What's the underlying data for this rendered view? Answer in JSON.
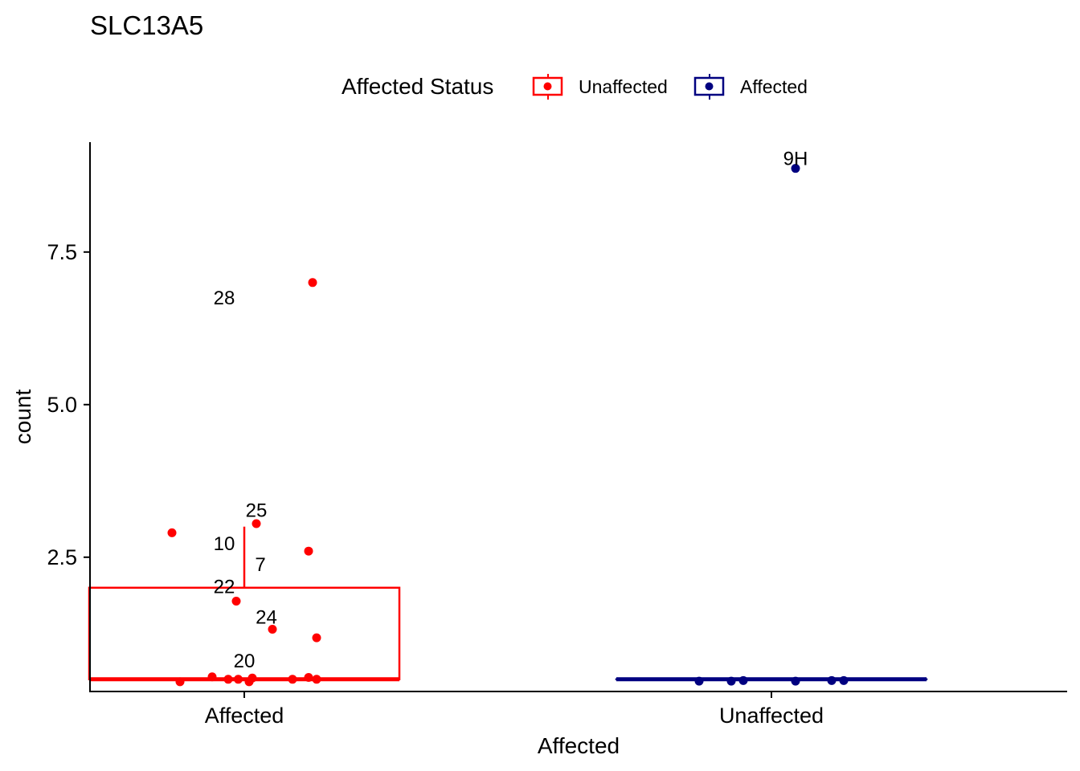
{
  "chart_data": {
    "type": "box",
    "title": "SLC13A5",
    "xlabel": "Affected",
    "ylabel": "count",
    "categories": [
      "Affected",
      "Unaffected"
    ],
    "ylim": [
      0.3,
      9.3
    ],
    "yticks": [
      2.5,
      5.0,
      7.5
    ],
    "ytick_labels": [
      "2.5",
      "5.0",
      "7.5"
    ],
    "legend": {
      "title": "Affected Status",
      "position": "top",
      "entries": [
        {
          "label": "Unaffected",
          "color": "#ff0000"
        },
        {
          "label": "Affected",
          "color": "#000080"
        }
      ]
    },
    "series": [
      {
        "name": "Unaffected",
        "category": "Affected",
        "color": "#ff0000",
        "box": {
          "q1": 0.5,
          "median": 0.5,
          "q3": 2.0,
          "whisker_low": 0.5,
          "whisker_high": 3.0
        },
        "points": [
          {
            "x": -0.18,
            "y": 2.9
          },
          {
            "x": 0.03,
            "y": 3.05
          },
          {
            "x": 0.16,
            "y": 2.6
          },
          {
            "x": 0.17,
            "y": 7.0
          },
          {
            "x": -0.02,
            "y": 1.78
          },
          {
            "x": 0.07,
            "y": 1.32
          },
          {
            "x": 0.18,
            "y": 1.18
          },
          {
            "x": -0.16,
            "y": 0.46
          },
          {
            "x": -0.08,
            "y": 0.54
          },
          {
            "x": -0.04,
            "y": 0.5
          },
          {
            "x": -0.015,
            "y": 0.5
          },
          {
            "x": 0.012,
            "y": 0.46
          },
          {
            "x": 0.02,
            "y": 0.52
          },
          {
            "x": 0.12,
            "y": 0.5
          },
          {
            "x": 0.16,
            "y": 0.53
          },
          {
            "x": 0.18,
            "y": 0.5
          }
        ],
        "labels": [
          {
            "text": "28",
            "x": -0.05,
            "y": 6.75
          },
          {
            "text": "25",
            "x": 0.03,
            "y": 3.27
          },
          {
            "text": "10",
            "x": -0.05,
            "y": 2.72
          },
          {
            "text": "7",
            "x": 0.04,
            "y": 2.38
          },
          {
            "text": "22",
            "x": -0.05,
            "y": 2.02
          },
          {
            "text": "24",
            "x": 0.055,
            "y": 1.52
          },
          {
            "text": "20",
            "x": 0.0,
            "y": 0.8
          }
        ]
      },
      {
        "name": "Affected",
        "category": "Unaffected",
        "color": "#000080",
        "box": {
          "q1": 0.5,
          "median": 0.5,
          "q3": 0.5,
          "whisker_low": 0.5,
          "whisker_high": 0.5
        },
        "points": [
          {
            "x": -0.18,
            "y": 0.47
          },
          {
            "x": -0.1,
            "y": 0.47
          },
          {
            "x": -0.07,
            "y": 0.48
          },
          {
            "x": 0.06,
            "y": 0.47
          },
          {
            "x": 0.15,
            "y": 0.48
          },
          {
            "x": 0.18,
            "y": 0.48
          },
          {
            "x": 0.06,
            "y": 8.87
          }
        ],
        "labels": [
          {
            "text": "9H",
            "x": 0.06,
            "y": 9.03
          }
        ]
      }
    ]
  }
}
